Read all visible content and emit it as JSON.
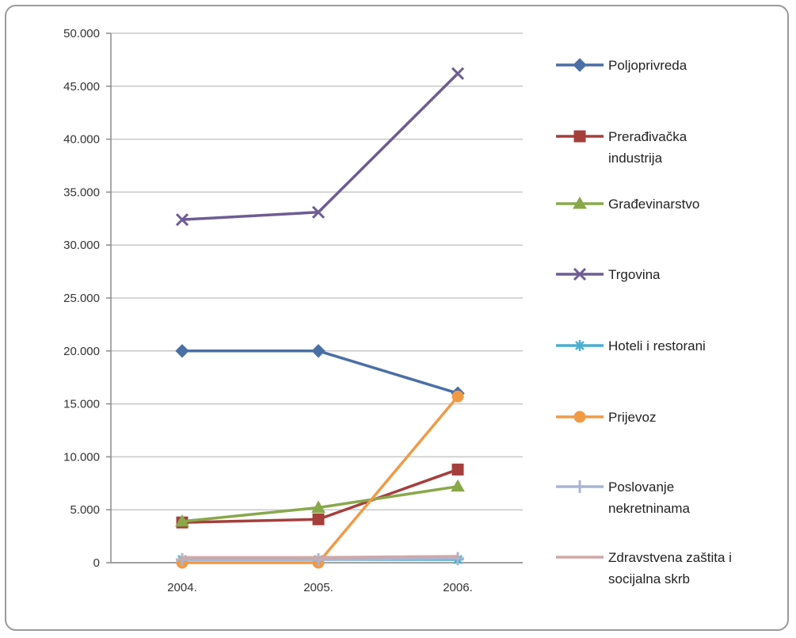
{
  "chart_data": {
    "type": "line",
    "categories": [
      "2004.",
      "2005.",
      "2006."
    ],
    "y_ticks": [
      "0",
      "5.000",
      "10.000",
      "15.000",
      "20.000",
      "25.000",
      "30.000",
      "35.000",
      "40.000",
      "45.000",
      "50.000"
    ],
    "ylim": [
      0,
      50000
    ],
    "grid": true,
    "legend_position": "right",
    "series": [
      {
        "name": "Poljoprivreda",
        "name_lines": [
          "Poljoprivreda"
        ],
        "values": [
          20000,
          20000,
          16000
        ],
        "color": "#4a6fa5",
        "marker": "diamond"
      },
      {
        "name": "Prerađivačka industrija",
        "name_lines": [
          "Prerađivačka",
          "industrija"
        ],
        "values": [
          3800,
          4100,
          8800
        ],
        "color": "#a53f3c",
        "marker": "square"
      },
      {
        "name": "Građevinarstvo",
        "name_lines": [
          "Građevinarstvo"
        ],
        "values": [
          3900,
          5200,
          7200
        ],
        "color": "#88a84a",
        "marker": "triangle"
      },
      {
        "name": "Trgovina",
        "name_lines": [
          "Trgovina"
        ],
        "values": [
          32400,
          33100,
          46200
        ],
        "color": "#6e5c95",
        "marker": "x"
      },
      {
        "name": "Hoteli i restorani",
        "name_lines": [
          "Hoteli i restorani"
        ],
        "values": [
          300,
          300,
          300
        ],
        "color": "#4aaed0",
        "marker": "star"
      },
      {
        "name": "Prijevoz",
        "name_lines": [
          "Prijevoz"
        ],
        "values": [
          0,
          0,
          15700
        ],
        "color": "#f09a46",
        "marker": "circle"
      },
      {
        "name": "Poslovanje nekretninama",
        "name_lines": [
          "Poslovanje",
          "nekretninama"
        ],
        "values": [
          300,
          300,
          400
        ],
        "color": "#a9b5d4",
        "marker": "plus"
      },
      {
        "name": "Zdravstvena zaštita i socijalna skrb",
        "name_lines": [
          "Zdravstvena zaštita i",
          "socijalna skrb"
        ],
        "values": [
          500,
          500,
          600
        ],
        "color": "#d0a8a8",
        "marker": "none"
      }
    ]
  }
}
